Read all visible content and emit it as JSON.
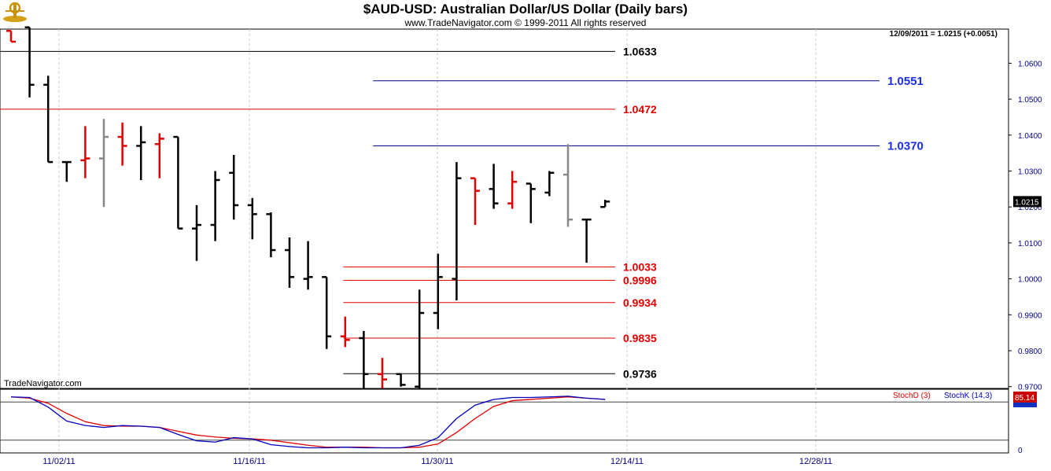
{
  "header": {
    "title": "$AUD-USD:  Australian Dollar/US Dollar  (Daily bars)",
    "subtitle": "www.TradeNavigator.com © 1999-2011 All rights reserved",
    "status": "12/09/2011 = 1.0215 (+0.0051)",
    "watermark": "TradeNavigator.com"
  },
  "chart_data": [
    {
      "type": "ohlc",
      "ylim": [
        0.9695,
        1.0695
      ],
      "y_ticks": [
        "1.0600",
        "1.0500",
        "1.0400",
        "1.0300",
        "1.0200",
        "1.0100",
        "1.0000",
        "0.9900",
        "0.9800",
        "0.9700"
      ],
      "x_ticks": [
        "11/02/11",
        "11/16/11",
        "11/30/11",
        "12/14/11",
        "12/28/11"
      ],
      "last_price_label": "1.0215",
      "bars": [
        {
          "o": 1.069,
          "h": 1.069,
          "l": 1.066,
          "c": 1.066,
          "color": "#e00000"
        },
        {
          "o": 1.07,
          "h": 1.07,
          "l": 1.0505,
          "c": 1.054,
          "color": "#000000"
        },
        {
          "o": 1.054,
          "h": 1.0565,
          "l": 1.0325,
          "c": 1.0325,
          "color": "#000000"
        },
        {
          "o": 1.0325,
          "h": 1.0325,
          "l": 1.027,
          "c": 1.0325,
          "color": "#000000"
        },
        {
          "o": 1.033,
          "h": 1.0425,
          "l": 1.028,
          "c": 1.0335,
          "color": "#e00000"
        },
        {
          "o": 1.0335,
          "h": 1.0445,
          "l": 1.02,
          "c": 1.0395,
          "color": "#888888"
        },
        {
          "o": 1.0395,
          "h": 1.0435,
          "l": 1.0315,
          "c": 1.037,
          "color": "#e00000"
        },
        {
          "o": 1.037,
          "h": 1.0425,
          "l": 1.0275,
          "c": 1.038,
          "color": "#000000"
        },
        {
          "o": 1.0375,
          "h": 1.0405,
          "l": 1.028,
          "c": 1.039,
          "color": "#e00000"
        },
        {
          "o": 1.0395,
          "h": 1.0395,
          "l": 1.014,
          "c": 1.014,
          "color": "#000000"
        },
        {
          "o": 1.014,
          "h": 1.0205,
          "l": 1.005,
          "c": 1.015,
          "color": "#000000"
        },
        {
          "o": 1.015,
          "h": 1.03,
          "l": 1.0105,
          "c": 1.0275,
          "color": "#000000"
        },
        {
          "o": 1.0295,
          "h": 1.0345,
          "l": 1.0165,
          "c": 1.0205,
          "color": "#000000"
        },
        {
          "o": 1.0205,
          "h": 1.0225,
          "l": 1.011,
          "c": 1.018,
          "color": "#000000"
        },
        {
          "o": 1.018,
          "h": 1.0185,
          "l": 1.006,
          "c": 1.008,
          "color": "#000000"
        },
        {
          "o": 1.008,
          "h": 1.0115,
          "l": 0.9975,
          "c": 1.0005,
          "color": "#000000"
        },
        {
          "o": 1.0,
          "h": 1.0105,
          "l": 0.997,
          "c": 1.0005,
          "color": "#000000"
        },
        {
          "o": 1.0005,
          "h": 1.0005,
          "l": 0.9805,
          "c": 0.984,
          "color": "#000000"
        },
        {
          "o": 0.984,
          "h": 0.9895,
          "l": 0.981,
          "c": 0.983,
          "color": "#e00000"
        },
        {
          "o": 0.9835,
          "h": 0.9855,
          "l": 0.9695,
          "c": 0.9735,
          "color": "#000000"
        },
        {
          "o": 0.9735,
          "h": 0.978,
          "l": 0.9695,
          "c": 0.972,
          "color": "#e00000"
        },
        {
          "o": 0.9735,
          "h": 0.9735,
          "l": 0.97,
          "c": 0.9705,
          "color": "#000000"
        },
        {
          "o": 0.97,
          "h": 0.997,
          "l": 0.9695,
          "c": 0.9905,
          "color": "#000000"
        },
        {
          "o": 0.9905,
          "h": 1.007,
          "l": 0.986,
          "c": 1.0005,
          "color": "#000000"
        },
        {
          "o": 1.0,
          "h": 1.0325,
          "l": 0.994,
          "c": 1.028,
          "color": "#000000"
        },
        {
          "o": 1.028,
          "h": 1.028,
          "l": 1.015,
          "c": 1.0245,
          "color": "#e00000"
        },
        {
          "o": 1.025,
          "h": 1.032,
          "l": 1.0195,
          "c": 1.021,
          "color": "#000000"
        },
        {
          "o": 1.021,
          "h": 1.03,
          "l": 1.0195,
          "c": 1.027,
          "color": "#e00000"
        },
        {
          "o": 1.0265,
          "h": 1.0265,
          "l": 1.0155,
          "c": 1.025,
          "color": "#000000"
        },
        {
          "o": 1.024,
          "h": 1.03,
          "l": 1.023,
          "c": 1.0295,
          "color": "#000000"
        },
        {
          "o": 1.029,
          "h": 1.0375,
          "l": 1.0145,
          "c": 1.0165,
          "color": "#888888"
        },
        {
          "o": 1.0165,
          "h": 1.0165,
          "l": 1.0045,
          "c": 1.0165,
          "color": "#000000"
        },
        {
          "o": 1.02,
          "h": 1.022,
          "l": 1.02,
          "c": 1.0215,
          "color": "#000000"
        }
      ],
      "levels": [
        {
          "value": 1.0633,
          "label": "1.0633",
          "color": "#000000",
          "label_color": "#000000",
          "from_bar": -1.5
        },
        {
          "value": 1.0551,
          "label": "1.0551",
          "color": "#000080",
          "label_color": "#1a2ee6",
          "from_bar": 19.5
        },
        {
          "value": 1.0472,
          "label": "1.0472",
          "color": "#e00000",
          "label_color": "#e00000",
          "from_bar": -1.5
        },
        {
          "value": 1.037,
          "label": "1.0370",
          "color": "#000080",
          "label_color": "#1a2ee6",
          "from_bar": 19.5
        },
        {
          "value": 1.0033,
          "label": "1.0033",
          "color": "#e00000",
          "label_color": "#e00000",
          "from_bar": 17.9
        },
        {
          "value": 0.9996,
          "label": "0.9996",
          "color": "#e00000",
          "label_color": "#e00000",
          "from_bar": 17.9
        },
        {
          "value": 0.9934,
          "label": "0.9934",
          "color": "#e00000",
          "label_color": "#e00000",
          "from_bar": 17.9
        },
        {
          "value": 0.9835,
          "label": "0.9835",
          "color": "#e00000",
          "label_color": "#e00000",
          "from_bar": 17.9
        },
        {
          "value": 0.9736,
          "label": "0.9736",
          "color": "#000000",
          "label_color": "#000000",
          "from_bar": 17.9
        }
      ]
    },
    {
      "type": "line",
      "ylim": [
        0,
        100
      ],
      "y_ticks": [
        "0"
      ],
      "reference_lines": [
        80,
        20
      ],
      "last_value_label": "85.14",
      "series": [
        {
          "name": "StochD (3)",
          "color": "#e00000",
          "values": [
            88,
            86,
            78,
            62,
            49,
            43,
            42,
            42,
            40,
            34,
            28,
            25,
            23,
            22,
            20,
            16,
            12,
            9,
            9,
            9,
            8,
            8,
            9,
            14,
            32,
            54,
            73,
            82,
            84,
            86,
            88,
            86,
            84
          ]
        },
        {
          "name": "StochK (14,3)",
          "color": "#0000c0",
          "values": [
            88,
            87,
            72,
            50,
            43,
            40,
            43,
            42,
            40,
            29,
            19,
            17,
            24,
            22,
            13,
            10,
            8,
            8,
            9,
            8,
            8,
            8,
            12,
            24,
            54,
            75,
            84,
            87,
            87,
            88,
            89,
            86,
            84
          ]
        }
      ]
    }
  ]
}
